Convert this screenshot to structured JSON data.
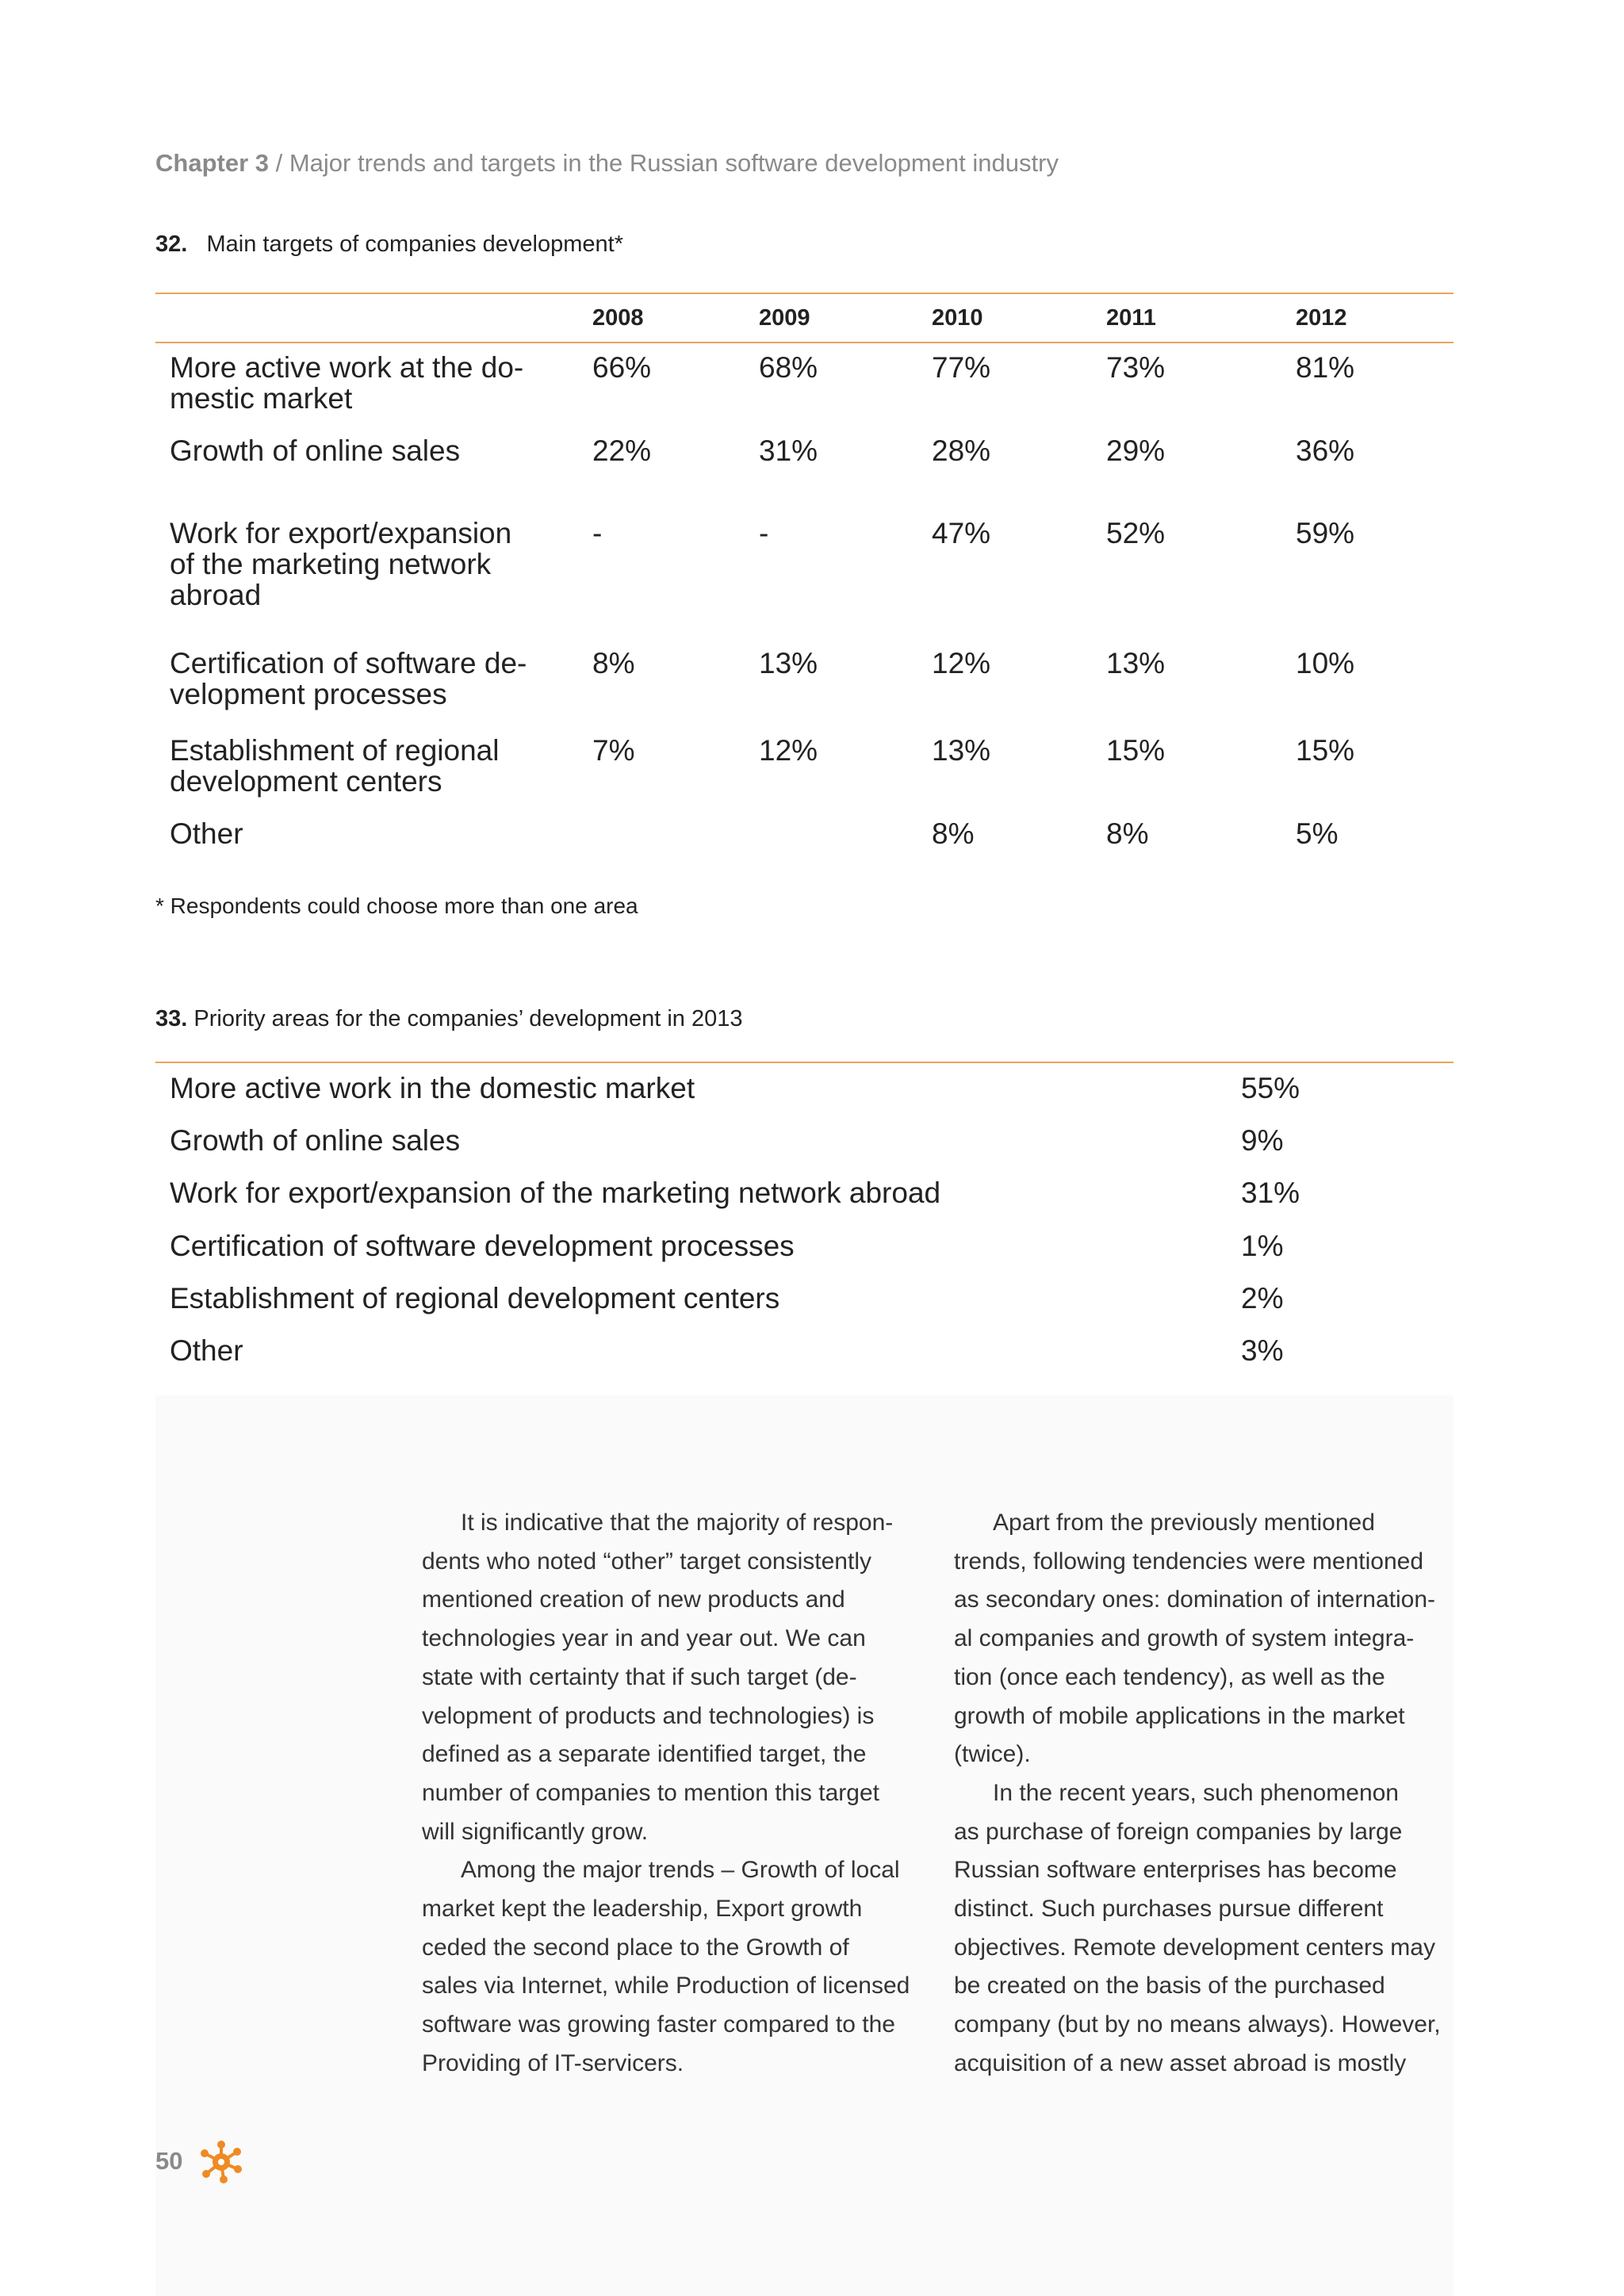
{
  "header": {
    "chapter": "Chapter 3",
    "title": "/ Major trends and targets in the Russian software development industry"
  },
  "table32": {
    "number": "32.",
    "title": "Main targets of companies development*",
    "columns": [
      "2008",
      "2009",
      "2010",
      "2011",
      "2012"
    ],
    "rows": [
      {
        "label": [
          "More active work at the do-",
          "mestic market"
        ],
        "cells": [
          "66%",
          "68%",
          "77%",
          "73%",
          "81%"
        ]
      },
      {
        "label": [
          "Growth of online sales"
        ],
        "cells": [
          "22%",
          "31%",
          "28%",
          "29%",
          "36%"
        ]
      },
      {
        "label": [
          "Work for export/expansion",
          "of the marketing network",
          "abroad"
        ],
        "cells": [
          "-",
          "-",
          "47%",
          "52%",
          "59%"
        ]
      },
      {
        "label": [
          "Certification of software de-",
          "velopment processes"
        ],
        "cells": [
          "8%",
          "13%",
          "12%",
          "13%",
          "10%"
        ]
      },
      {
        "label": [
          "Establishment of regional",
          "development centers"
        ],
        "cells": [
          "7%",
          "12%",
          "13%",
          "15%",
          "15%"
        ]
      },
      {
        "label": [
          "Other"
        ],
        "cells": [
          null,
          null,
          "8%",
          "8%",
          "5%"
        ]
      }
    ],
    "footnote": "* Respondents could choose more than one area"
  },
  "table33": {
    "number": "33.",
    "title": "Priority areas for the companies’ development in 2013",
    "rows": [
      [
        "More active work in the domestic market",
        "55%"
      ],
      [
        "Growth of online sales",
        "9%"
      ],
      [
        "Work for export/expansion of the marketing network abroad",
        "31%"
      ],
      [
        "Certification of software development processes",
        "1%"
      ],
      [
        "Establishment of regional development centers",
        "2%"
      ],
      [
        "Other",
        "3%"
      ]
    ]
  },
  "body": {
    "columns": [
      [
        [
          "It is indicative that the majority of respon-",
          "dents who noted “other” target consistently",
          "mentioned creation of new products and",
          "technologies year in and year out. We can",
          "state with certainty that if such target (de-",
          "velopment of products and technologies) is",
          "defined as a separate identified target, the",
          "number of companies to mention this target",
          "will significantly grow."
        ],
        [
          "Among the major trends – Growth of local",
          "market kept the leadership, Export growth",
          "ceded the second place to the Growth of",
          "sales via Internet, while Production of licensed",
          "software was growing faster compared to the",
          "Providing of IT-servicers."
        ]
      ],
      [
        [
          "Apart from the previously mentioned",
          "trends, following tendencies were mentioned",
          "as secondary ones: domination of internation-",
          "al companies and growth of system integra-",
          "tion (once each tendency), as well as the",
          "growth of mobile applications in the market",
          "(twice)."
        ],
        [
          "In the recent years, such phenomenon",
          "as purchase of foreign companies by large",
          "Russian software enterprises has become",
          "distinct. Such purchases pursue different",
          "objectives. Remote development centers may",
          "be created on the basis of the purchased",
          "company (but by no means always). However,",
          "acquisition of a new asset abroad is mostly"
        ]
      ]
    ]
  },
  "page_number": "50"
}
